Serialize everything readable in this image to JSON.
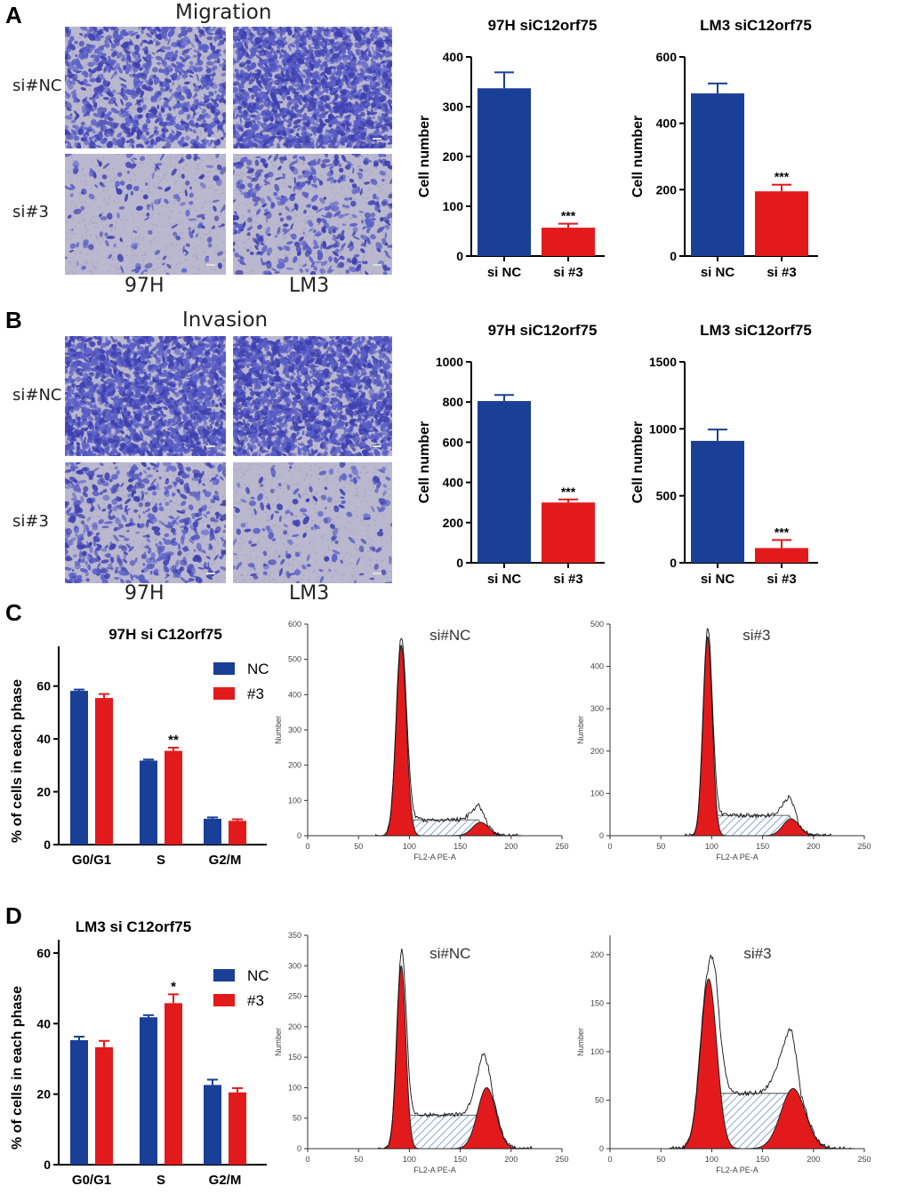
{
  "panels": {
    "A": "A",
    "B": "B",
    "C": "C",
    "D": "D"
  },
  "migration": {
    "title": "Migration",
    "rows": [
      "si#NC",
      "si#3"
    ],
    "cols": [
      "97H",
      "LM3"
    ]
  },
  "invasion": {
    "title": "Invasion",
    "rows": [
      "si#NC",
      "si#3"
    ],
    "cols": [
      "97H",
      "LM3"
    ]
  },
  "colors": {
    "blue": "#1a3f96",
    "red": "#e31a1c",
    "stain": "#5a5fc8",
    "bg": "#b9b8cf"
  },
  "chart_data": [
    {
      "id": "a1",
      "type": "bar",
      "title": "97H siC12orf75",
      "ylabel": "Cell number",
      "categories": [
        "si NC",
        "si #3"
      ],
      "values": [
        337,
        57
      ],
      "errors": [
        32,
        8
      ],
      "ylim": [
        0,
        400
      ],
      "yticks": [
        0,
        100,
        200,
        300,
        400
      ],
      "sig": [
        "",
        "***"
      ]
    },
    {
      "id": "a2",
      "type": "bar",
      "title": "LM3 siC12orf75",
      "ylabel": "Cell number",
      "categories": [
        "si NC",
        "si #3"
      ],
      "values": [
        490,
        195
      ],
      "errors": [
        30,
        20
      ],
      "ylim": [
        0,
        600
      ],
      "yticks": [
        0,
        200,
        400,
        600
      ],
      "sig": [
        "",
        "***"
      ]
    },
    {
      "id": "b1",
      "type": "bar",
      "title": "97H siC12orf75",
      "ylabel": "Cell number",
      "categories": [
        "si NC",
        "si #3"
      ],
      "values": [
        805,
        300
      ],
      "errors": [
        30,
        15
      ],
      "ylim": [
        0,
        1000
      ],
      "yticks": [
        0,
        200,
        400,
        600,
        800,
        1000
      ],
      "sig": [
        "",
        "***"
      ]
    },
    {
      "id": "b2",
      "type": "bar",
      "title": "LM3 siC12orf75",
      "ylabel": "Cell number",
      "categories": [
        "si NC",
        "si #3"
      ],
      "values": [
        910,
        110
      ],
      "errors": [
        85,
        60
      ],
      "ylim": [
        0,
        1500
      ],
      "yticks": [
        0,
        500,
        1000,
        1500
      ],
      "sig": [
        "",
        "***"
      ]
    },
    {
      "id": "c1",
      "type": "bar",
      "title": "97H si C12orf75",
      "ylabel": "% of cells in each phase",
      "categories": [
        "G0/G1",
        "S",
        "G2/M"
      ],
      "series": [
        {
          "name": "NC",
          "values": [
            58.2,
            31.8,
            9.8
          ],
          "errors": [
            0.5,
            0.4,
            0.5
          ]
        },
        {
          "name": "#3",
          "values": [
            55.5,
            35.5,
            9.0
          ],
          "errors": [
            1.5,
            1.2,
            0.6
          ]
        }
      ],
      "ylim": [
        0,
        70
      ],
      "yticks": [
        0,
        20,
        40,
        60
      ],
      "sig": [
        "",
        "**",
        ""
      ]
    },
    {
      "id": "d1",
      "type": "bar",
      "title": "LM3 si C12orf75",
      "ylabel": "% of cells in each phase",
      "categories": [
        "G0/G1",
        "S",
        "G2/M"
      ],
      "series": [
        {
          "name": "NC",
          "values": [
            35.3,
            41.8,
            22.6
          ],
          "errors": [
            1.0,
            0.6,
            1.5
          ]
        },
        {
          "name": "#3",
          "values": [
            33.3,
            45.8,
            20.5
          ],
          "errors": [
            1.8,
            2.5,
            1.2
          ]
        }
      ],
      "ylim": [
        0,
        60
      ],
      "yticks": [
        0,
        20,
        40,
        60
      ],
      "sig": [
        "",
        "*",
        ""
      ]
    },
    {
      "id": "c2",
      "type": "histogram",
      "title": "si#NC",
      "xlabel": "FL2-A PE-A",
      "ylabel": "Number",
      "xlim": [
        0,
        250
      ],
      "xticks": [
        0,
        50,
        100,
        150,
        200,
        250
      ],
      "ylim": [
        0,
        600
      ],
      "yticks": [
        0,
        100,
        200,
        300,
        400,
        500,
        600
      ],
      "g1": {
        "mean": 92,
        "sd": 5,
        "peak": 540
      },
      "g2": {
        "mean": 170,
        "sd": 8,
        "peak": 38
      },
      "s": {
        "start": 100,
        "end": 168,
        "level": 45
      }
    },
    {
      "id": "c3",
      "type": "histogram",
      "title": "si#3",
      "xlabel": "FL2-A PE-A",
      "ylabel": "Number",
      "xlim": [
        0,
        250
      ],
      "xticks": [
        0,
        50,
        100,
        150,
        200,
        250
      ],
      "ylim": [
        0,
        500
      ],
      "yticks": [
        0,
        100,
        200,
        300,
        400,
        500
      ],
      "g1": {
        "mean": 96,
        "sd": 4.5,
        "peak": 470
      },
      "g2": {
        "mean": 178,
        "sd": 8,
        "peak": 40
      },
      "s": {
        "start": 104,
        "end": 176,
        "level": 48
      }
    },
    {
      "id": "d2",
      "type": "histogram",
      "title": "si#NC",
      "xlabel": "FL2-A PE-A",
      "ylabel": "Number",
      "xlim": [
        0,
        250
      ],
      "xticks": [
        0,
        50,
        100,
        150,
        200,
        250
      ],
      "ylim": [
        0,
        350
      ],
      "yticks": [
        0,
        50,
        100,
        150,
        200,
        250,
        300,
        350
      ],
      "g1": {
        "mean": 92,
        "sd": 4.5,
        "peak": 300
      },
      "g2": {
        "mean": 176,
        "sd": 9,
        "peak": 100
      },
      "s": {
        "start": 98,
        "end": 172,
        "level": 55
      }
    },
    {
      "id": "d3",
      "type": "histogram",
      "title": "si#3",
      "xlabel": "FL2-A PE-A",
      "ylabel": "Number",
      "xlim": [
        0,
        250
      ],
      "xticks": [
        0,
        50,
        100,
        150,
        200,
        250
      ],
      "ylim": [
        0,
        220
      ],
      "yticks": [
        0,
        50,
        100,
        150,
        200
      ],
      "g1": {
        "mean": 97,
        "sd": 8,
        "peak": 175
      },
      "g2": {
        "mean": 180,
        "sd": 12,
        "peak": 62
      },
      "s": {
        "start": 104,
        "end": 178,
        "level": 57
      }
    }
  ]
}
